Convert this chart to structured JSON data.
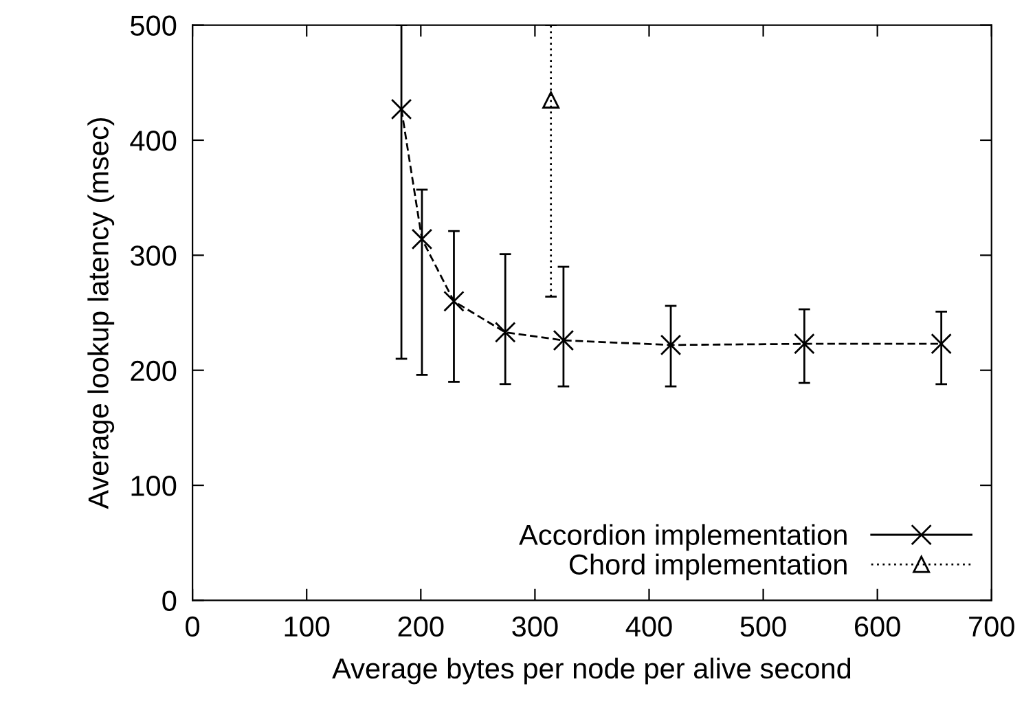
{
  "chart_data": {
    "type": "line",
    "xlabel": "Average bytes per node per alive second",
    "ylabel": "Average lookup latency (msec)",
    "xlim": [
      0,
      700
    ],
    "xticks": [
      0,
      100,
      200,
      300,
      400,
      500,
      600,
      700
    ],
    "ylim": [
      0,
      500
    ],
    "yticks": [
      0,
      100,
      200,
      300,
      400,
      500
    ],
    "grid": false,
    "legend": "bottom right",
    "series": [
      {
        "name": "Accordion implementation",
        "color": "#000000",
        "marker": "cross",
        "line_style": "dashed",
        "x": [
          183,
          201,
          229,
          274,
          325,
          419,
          536,
          656
        ],
        "values": [
          427,
          314,
          260,
          233,
          226,
          222,
          223,
          223
        ],
        "errors": [
          [
            210,
            500
          ],
          [
            196,
            357
          ],
          [
            190,
            321
          ],
          [
            188,
            301
          ],
          [
            186,
            290
          ],
          [
            186,
            256
          ],
          [
            189,
            253
          ],
          [
            188,
            251
          ]
        ]
      },
      {
        "name": "Chord implementation",
        "color": "#000000",
        "marker": "triangle",
        "line_style": "dotted",
        "x": [
          314
        ],
        "values": [
          435
        ],
        "errors": [
          [
            264,
            500
          ]
        ]
      }
    ]
  }
}
